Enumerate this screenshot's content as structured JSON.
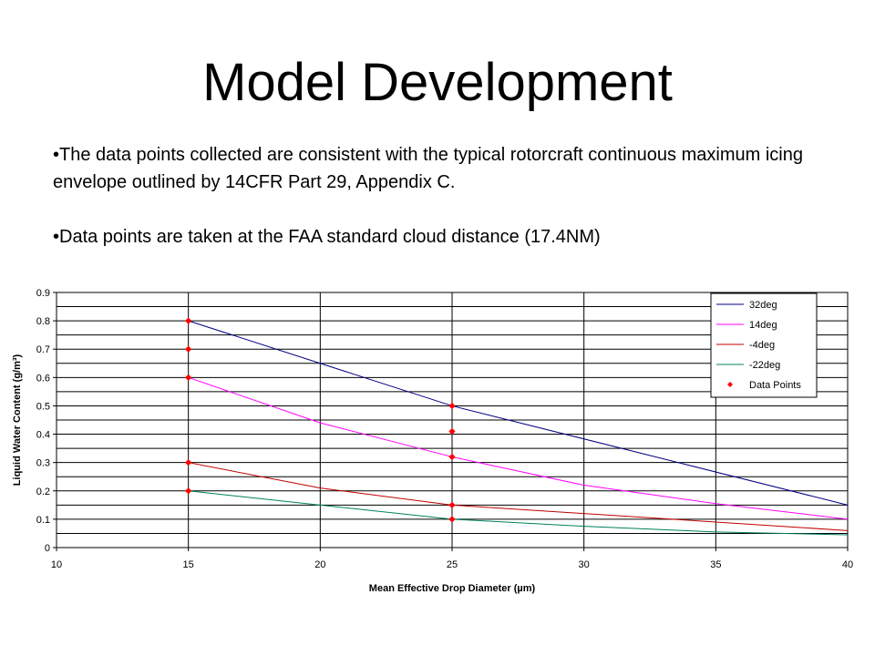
{
  "slide": {
    "title": "Model Development",
    "bullets": [
      "•The data points collected are consistent with the typical rotorcraft continuous maximum icing envelope outlined by 14CFR Part 29, Appendix C.",
      "•Data points are taken at the FAA standard cloud distance (17.4NM)"
    ]
  },
  "chart_data": {
    "type": "line",
    "xlabel": "Mean Effective Drop Diameter (µm)",
    "ylabel": "Liquid Water Content (g/m³)",
    "xlim": [
      10,
      40
    ],
    "ylim": [
      0,
      0.9
    ],
    "xticks": [
      10,
      15,
      20,
      25,
      30,
      35,
      40
    ],
    "yticks": [
      0,
      0.1,
      0.2,
      0.3,
      0.4,
      0.5,
      0.6,
      0.7,
      0.8,
      0.9
    ],
    "grid": true,
    "legend_position": "top-right",
    "series": [
      {
        "name": "32deg",
        "color": "#000080",
        "x": [
          15,
          25,
          40
        ],
        "y": [
          0.8,
          0.5,
          0.15
        ]
      },
      {
        "name": "14deg",
        "color": "#ff00ff",
        "x": [
          15,
          20,
          25,
          30,
          35,
          40
        ],
        "y": [
          0.6,
          0.44,
          0.32,
          0.22,
          0.155,
          0.1
        ]
      },
      {
        "name": "-4deg",
        "color": "#c00000",
        "x": [
          15,
          20,
          25,
          30,
          35,
          40
        ],
        "y": [
          0.3,
          0.21,
          0.15,
          0.12,
          0.09,
          0.06
        ]
      },
      {
        "name": "-22deg",
        "color": "#008060",
        "x": [
          15,
          20,
          25,
          30,
          35,
          40
        ],
        "y": [
          0.2,
          0.15,
          0.1,
          0.075,
          0.055,
          0.045
        ]
      }
    ],
    "points": {
      "name": "Data Points",
      "color": "#ff0000",
      "x": [
        15,
        15,
        15,
        15,
        15,
        25,
        25,
        25,
        25,
        25
      ],
      "y": [
        0.8,
        0.7,
        0.6,
        0.3,
        0.2,
        0.5,
        0.41,
        0.32,
        0.15,
        0.1
      ]
    }
  }
}
